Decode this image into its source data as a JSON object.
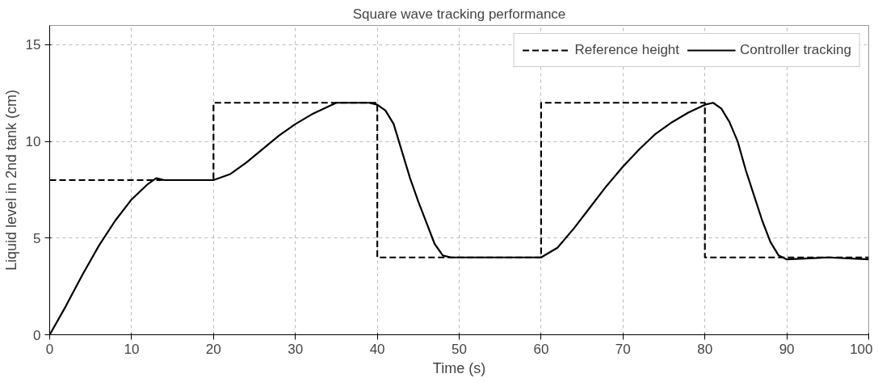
{
  "chart_data": {
    "type": "line",
    "title": "Square wave tracking performance",
    "xlabel": "Time (s)",
    "ylabel": "Liquid level in 2nd tank (cm)",
    "xlim": [
      0,
      100
    ],
    "ylim": [
      0,
      16
    ],
    "xticks": [
      0,
      10,
      20,
      30,
      40,
      50,
      60,
      70,
      80,
      90,
      100
    ],
    "yticks": [
      0,
      5,
      10,
      15
    ],
    "grid": true,
    "legend": "top right",
    "series": [
      {
        "name": "Reference height",
        "color": "#000000",
        "line_style": "dashed",
        "x": [
          0,
          20,
          20,
          40,
          40,
          60,
          60,
          80,
          80,
          100
        ],
        "values": [
          8,
          8,
          12,
          12,
          4,
          4,
          12,
          12,
          4,
          4
        ]
      },
      {
        "name": "Controller tracking",
        "color": "#000000",
        "line_style": "solid",
        "x": [
          0,
          2,
          4,
          6,
          8,
          10,
          12,
          13,
          14,
          20,
          22,
          24,
          26,
          28,
          30,
          32,
          34,
          35,
          39,
          40,
          41,
          42,
          43,
          44,
          45,
          46,
          47,
          48,
          49,
          60,
          62,
          64,
          66,
          68,
          70,
          72,
          74,
          76,
          78,
          80,
          81,
          82,
          83,
          84,
          85,
          86,
          87,
          88,
          89,
          90,
          95,
          100
        ],
        "values": [
          0,
          1.5,
          3.1,
          4.6,
          5.9,
          7,
          7.8,
          8.1,
          8,
          8,
          8.3,
          8.9,
          9.6,
          10.3,
          10.9,
          11.4,
          11.8,
          12,
          12,
          11.9,
          11.6,
          10.9,
          9.5,
          8.1,
          6.9,
          5.8,
          4.7,
          4.1,
          4,
          4,
          4.5,
          5.5,
          6.6,
          7.7,
          8.7,
          9.6,
          10.4,
          11,
          11.5,
          11.9,
          12,
          11.7,
          11,
          10,
          8.5,
          7.2,
          5.9,
          4.8,
          4.1,
          3.9,
          4,
          3.9
        ]
      }
    ]
  }
}
